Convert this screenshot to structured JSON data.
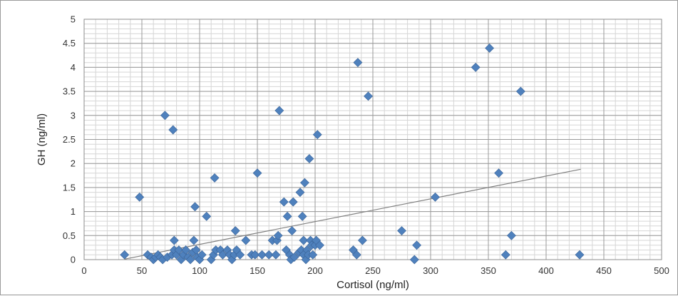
{
  "chart_data": {
    "type": "scatter",
    "title": "",
    "xlabel": "Cortisol (ng/ml)",
    "ylabel": "GH (ng/ml)",
    "xlim": [
      0,
      500
    ],
    "ylim": [
      0,
      5
    ],
    "x_major_ticks": [
      0,
      50,
      100,
      150,
      200,
      250,
      300,
      350,
      400,
      450,
      500
    ],
    "x_tick_labels": [
      "0",
      "50",
      "100",
      "150",
      "200",
      "250",
      "300",
      "350",
      "400",
      "450",
      "500"
    ],
    "y_major_ticks": [
      0,
      0.5,
      1,
      1.5,
      2,
      2.5,
      3,
      3.5,
      4,
      4.5,
      5
    ],
    "y_tick_labels": [
      "0",
      "0.5",
      "1",
      "1.5",
      "2",
      "2.5",
      "3",
      "3.5",
      "4",
      "4.5",
      "5"
    ],
    "x_minor_step": 10,
    "y_minor_step": 0.1,
    "grid": true,
    "legend": "none",
    "marker": "diamond",
    "marker_color": "#4f81bd",
    "marker_edge_color": "#3a6397",
    "trendline": {
      "type": "linear",
      "color": "#808080",
      "x": [
        35,
        430
      ],
      "y": [
        0.01,
        1.88
      ]
    },
    "points": [
      {
        "x": 35,
        "y": 0.1
      },
      {
        "x": 48,
        "y": 1.3
      },
      {
        "x": 55,
        "y": 0.1
      },
      {
        "x": 58,
        "y": 0.05
      },
      {
        "x": 60,
        "y": 0.0
      },
      {
        "x": 62,
        "y": 0.05
      },
      {
        "x": 64,
        "y": 0.1
      },
      {
        "x": 66,
        "y": 0.05
      },
      {
        "x": 68,
        "y": 0.0
      },
      {
        "x": 70,
        "y": 3.0
      },
      {
        "x": 72,
        "y": 0.05
      },
      {
        "x": 76,
        "y": 0.1
      },
      {
        "x": 77,
        "y": 2.7
      },
      {
        "x": 78,
        "y": 0.4
      },
      {
        "x": 78,
        "y": 0.2
      },
      {
        "x": 80,
        "y": 0.1
      },
      {
        "x": 82,
        "y": 0.2
      },
      {
        "x": 84,
        "y": 0.0
      },
      {
        "x": 86,
        "y": 0.1
      },
      {
        "x": 88,
        "y": 0.2
      },
      {
        "x": 90,
        "y": 0.05
      },
      {
        "x": 92,
        "y": 0.0
      },
      {
        "x": 94,
        "y": 0.15
      },
      {
        "x": 95,
        "y": 0.4
      },
      {
        "x": 96,
        "y": 1.1
      },
      {
        "x": 97,
        "y": 0.2
      },
      {
        "x": 98,
        "y": 0.05
      },
      {
        "x": 100,
        "y": 0.0
      },
      {
        "x": 102,
        "y": 0.1
      },
      {
        "x": 106,
        "y": 0.9
      },
      {
        "x": 110,
        "y": 0.0
      },
      {
        "x": 112,
        "y": 0.1
      },
      {
        "x": 113,
        "y": 1.7
      },
      {
        "x": 114,
        "y": 0.2
      },
      {
        "x": 118,
        "y": 0.2
      },
      {
        "x": 120,
        "y": 0.1
      },
      {
        "x": 124,
        "y": 0.2
      },
      {
        "x": 126,
        "y": 0.1
      },
      {
        "x": 128,
        "y": 0.0
      },
      {
        "x": 130,
        "y": 0.1
      },
      {
        "x": 131,
        "y": 0.6
      },
      {
        "x": 132,
        "y": 0.2
      },
      {
        "x": 135,
        "y": 0.1
      },
      {
        "x": 140,
        "y": 0.4
      },
      {
        "x": 145,
        "y": 0.1
      },
      {
        "x": 148,
        "y": 0.1
      },
      {
        "x": 150,
        "y": 1.8
      },
      {
        "x": 154,
        "y": 0.1
      },
      {
        "x": 160,
        "y": 0.1
      },
      {
        "x": 163,
        "y": 0.4
      },
      {
        "x": 166,
        "y": 0.1
      },
      {
        "x": 167,
        "y": 0.4
      },
      {
        "x": 168,
        "y": 0.5
      },
      {
        "x": 169,
        "y": 3.1
      },
      {
        "x": 173,
        "y": 1.2
      },
      {
        "x": 175,
        "y": 0.2
      },
      {
        "x": 176,
        "y": 0.9
      },
      {
        "x": 178,
        "y": 0.1
      },
      {
        "x": 179,
        "y": 0.0
      },
      {
        "x": 180,
        "y": 0.6
      },
      {
        "x": 181,
        "y": 1.2
      },
      {
        "x": 182,
        "y": 0.05
      },
      {
        "x": 186,
        "y": 0.15
      },
      {
        "x": 187,
        "y": 1.4
      },
      {
        "x": 188,
        "y": 0.2
      },
      {
        "x": 189,
        "y": 0.9
      },
      {
        "x": 190,
        "y": 0.1
      },
      {
        "x": 190,
        "y": 0.4
      },
      {
        "x": 191,
        "y": 1.6
      },
      {
        "x": 192,
        "y": 0.0
      },
      {
        "x": 193,
        "y": 0.2
      },
      {
        "x": 194,
        "y": 0.1
      },
      {
        "x": 195,
        "y": 2.1
      },
      {
        "x": 196,
        "y": 0.4
      },
      {
        "x": 197,
        "y": 0.3
      },
      {
        "x": 198,
        "y": 0.1
      },
      {
        "x": 200,
        "y": 0.3
      },
      {
        "x": 201,
        "y": 0.4
      },
      {
        "x": 202,
        "y": 2.6
      },
      {
        "x": 204,
        "y": 0.3
      },
      {
        "x": 233,
        "y": 0.2
      },
      {
        "x": 236,
        "y": 0.1
      },
      {
        "x": 237,
        "y": 4.1
      },
      {
        "x": 241,
        "y": 0.4
      },
      {
        "x": 246,
        "y": 3.4
      },
      {
        "x": 275,
        "y": 0.6
      },
      {
        "x": 286,
        "y": 0.0
      },
      {
        "x": 288,
        "y": 0.3
      },
      {
        "x": 304,
        "y": 1.3
      },
      {
        "x": 339,
        "y": 4.0
      },
      {
        "x": 351,
        "y": 4.4
      },
      {
        "x": 359,
        "y": 1.8
      },
      {
        "x": 365,
        "y": 0.1
      },
      {
        "x": 370,
        "y": 0.5
      },
      {
        "x": 378,
        "y": 3.5
      },
      {
        "x": 429,
        "y": 0.1
      }
    ]
  }
}
